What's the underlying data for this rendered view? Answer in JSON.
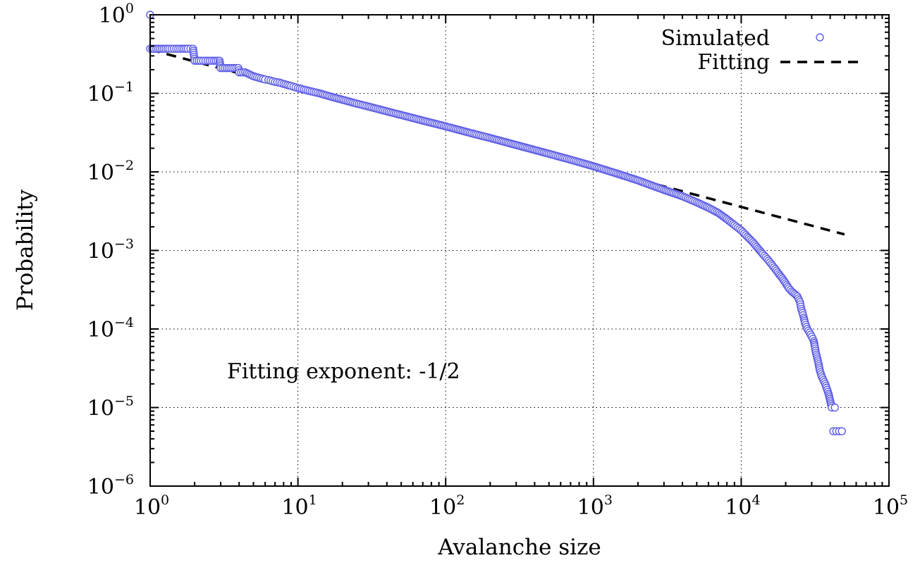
{
  "chart_data": {
    "type": "scatter",
    "scale": "log-log",
    "xlabel": "Avalanche size",
    "ylabel": "Probability",
    "xlim": [
      1,
      100000
    ],
    "ylim": [
      1e-06,
      1
    ],
    "grid": true,
    "legend_position": "top-right",
    "x_ticks": [
      {
        "base": "10",
        "exp": "0"
      },
      {
        "base": "10",
        "exp": "1"
      },
      {
        "base": "10",
        "exp": "2"
      },
      {
        "base": "10",
        "exp": "3"
      },
      {
        "base": "10",
        "exp": "4"
      },
      {
        "base": "10",
        "exp": "5"
      }
    ],
    "y_ticks": [
      {
        "base": "10",
        "exp": "0"
      },
      {
        "base": "10",
        "exp": "−1"
      },
      {
        "base": "10",
        "exp": "−2"
      },
      {
        "base": "10",
        "exp": "−3"
      },
      {
        "base": "10",
        "exp": "−4"
      },
      {
        "base": "10",
        "exp": "−5"
      },
      {
        "base": "10",
        "exp": "−6"
      }
    ],
    "annotation": "Fitting exponent: -1/2",
    "series": [
      {
        "name": "Simulated",
        "style": "open-circles",
        "color": "#5c5ce6",
        "points": [
          [
            1,
            1.0
          ],
          [
            1,
            0.37
          ],
          [
            1.1,
            0.37
          ],
          [
            1.2,
            0.37
          ],
          [
            1.35,
            0.37
          ],
          [
            1.5,
            0.37
          ],
          [
            1.65,
            0.37
          ],
          [
            1.8,
            0.37
          ],
          [
            1.95,
            0.37
          ],
          [
            2,
            0.26
          ],
          [
            2.2,
            0.26
          ],
          [
            2.45,
            0.26
          ],
          [
            2.7,
            0.26
          ],
          [
            2.95,
            0.26
          ],
          [
            3,
            0.21
          ],
          [
            3.3,
            0.21
          ],
          [
            3.6,
            0.21
          ],
          [
            3.95,
            0.21
          ],
          [
            4,
            0.185
          ],
          [
            4.4,
            0.185
          ],
          [
            5,
            0.165
          ],
          [
            5.3,
            0.16
          ],
          [
            6,
            0.15
          ],
          [
            6.3,
            0.148
          ],
          [
            7,
            0.14
          ],
          [
            7.5,
            0.137
          ],
          [
            8,
            0.132
          ],
          [
            9,
            0.124
          ],
          [
            10,
            0.117
          ],
          [
            12,
            0.107
          ],
          [
            14,
            0.1
          ],
          [
            17,
            0.09
          ],
          [
            20,
            0.083
          ],
          [
            25,
            0.074
          ],
          [
            30,
            0.068
          ],
          [
            40,
            0.059
          ],
          [
            50,
            0.053
          ],
          [
            70,
            0.045
          ],
          [
            100,
            0.038
          ],
          [
            150,
            0.031
          ],
          [
            200,
            0.027
          ],
          [
            300,
            0.022
          ],
          [
            500,
            0.017
          ],
          [
            700,
            0.0143
          ],
          [
            1000,
            0.0118
          ],
          [
            1500,
            0.0093
          ],
          [
            2000,
            0.0078
          ],
          [
            3000,
            0.0059
          ],
          [
            4000,
            0.0049
          ],
          [
            5000,
            0.0041
          ],
          [
            6000,
            0.0035
          ],
          [
            7000,
            0.003
          ],
          [
            8000,
            0.0025
          ],
          [
            9000,
            0.0021
          ],
          [
            10000,
            0.0018
          ],
          [
            11000,
            0.0015
          ],
          [
            12000,
            0.00127
          ],
          [
            13000,
            0.00106
          ],
          [
            14000,
            0.0009
          ],
          [
            15000,
            0.00078
          ],
          [
            16000,
            0.00067
          ],
          [
            17000,
            0.00058
          ],
          [
            18000,
            0.0005
          ],
          [
            19000,
            0.00044
          ],
          [
            20000,
            0.00038
          ],
          [
            21000,
            0.00033
          ],
          [
            22000,
            0.0003
          ],
          [
            23000,
            0.00028
          ],
          [
            24000,
            0.00026
          ],
          [
            25000,
            0.00022
          ],
          [
            25500,
            0.00018
          ],
          [
            26000,
            0.00016
          ],
          [
            26500,
            0.00014
          ],
          [
            27000,
            0.00012
          ],
          [
            28000,
            0.0001
          ],
          [
            29000,
            9e-05
          ],
          [
            30000,
            8e-05
          ],
          [
            31000,
            7e-05
          ],
          [
            31500,
            6e-05
          ],
          [
            32000,
            5e-05
          ],
          [
            33000,
            4e-05
          ],
          [
            34000,
            3e-05
          ],
          [
            35000,
            2.5e-05
          ],
          [
            37000,
            2e-05
          ],
          [
            39000,
            1.5e-05
          ],
          [
            41000,
            1e-05
          ],
          [
            43000,
            1e-05
          ],
          [
            42000,
            5e-06
          ],
          [
            44000,
            5e-06
          ],
          [
            46000,
            5e-06
          ],
          [
            48000,
            5e-06
          ]
        ]
      },
      {
        "name": "Fitting",
        "style": "dashed-line",
        "color": "#000000",
        "exponent": -0.5,
        "x": [
          1,
          50000
        ],
        "y": [
          0.36,
          0.0016
        ]
      }
    ]
  }
}
